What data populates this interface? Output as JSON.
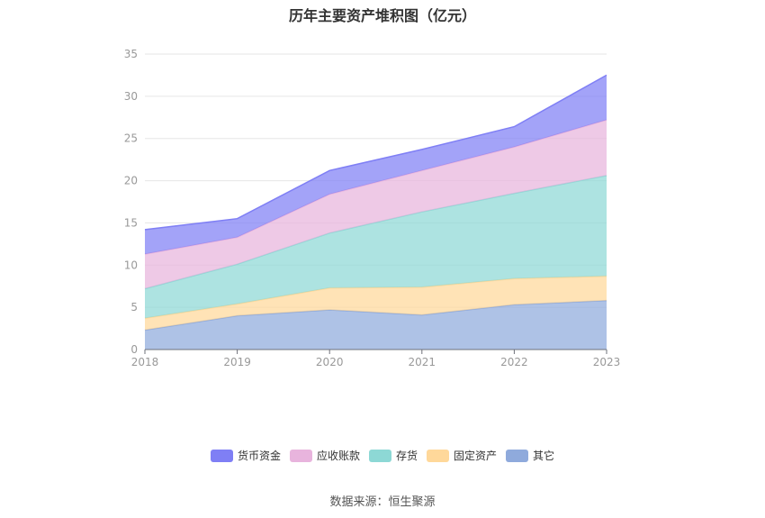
{
  "chart_data": {
    "type": "area",
    "stacked": true,
    "title": "历年主要资产堆积图（亿元）",
    "categories": [
      "2018",
      "2019",
      "2020",
      "2021",
      "2022",
      "2023"
    ],
    "ylim": [
      0,
      35
    ],
    "yticks": [
      0,
      5,
      10,
      15,
      20,
      25,
      30,
      35
    ],
    "series": [
      {
        "name": "其它",
        "color": "#8faadc",
        "values": [
          2.3,
          4.0,
          4.7,
          4.1,
          5.3,
          5.8
        ]
      },
      {
        "name": "固定资产",
        "color": "#ffd89a",
        "values": [
          1.4,
          1.4,
          2.6,
          3.3,
          3.1,
          2.9
        ]
      },
      {
        "name": "存货",
        "color": "#8dd8d5",
        "values": [
          3.5,
          4.7,
          6.5,
          8.9,
          10.1,
          11.9
        ]
      },
      {
        "name": "应收账款",
        "color": "#e8b4dd",
        "values": [
          4.1,
          3.2,
          4.6,
          4.9,
          5.5,
          6.6
        ]
      },
      {
        "name": "货币资金",
        "color": "#7f7ff5",
        "values": [
          2.9,
          2.2,
          2.8,
          2.5,
          2.4,
          5.3
        ]
      }
    ],
    "legend_order": [
      "货币资金",
      "应收账款",
      "存货",
      "固定资产",
      "其它"
    ],
    "legend_position": "bottom",
    "grid": true
  },
  "source": "数据来源：恒生聚源"
}
